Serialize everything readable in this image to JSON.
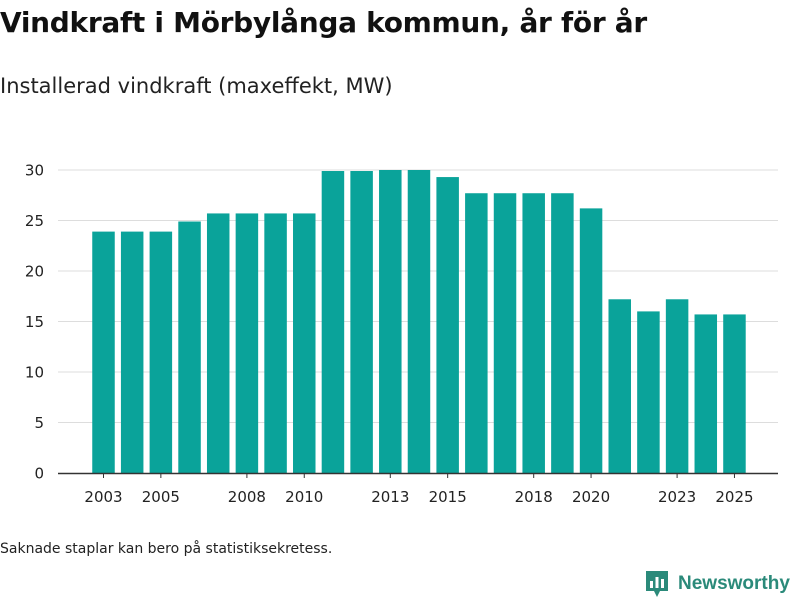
{
  "header": {
    "title": "Vindkraft i Mörbylånga kommun, år för år",
    "subtitle": "Installerad vindkraft (maxeffekt, MW)"
  },
  "footnote": "Saknade staplar kan bero på statistiksekretess.",
  "brand": {
    "name": "Newsworthy",
    "color": "#2b8a7a",
    "icon": "newsworthy-logo-icon"
  },
  "colors": {
    "bar": "#0aa39a",
    "grid": "#dddddd",
    "axis": "#333333"
  },
  "chart_data": {
    "type": "bar",
    "title": "Vindkraft i Mörbylånga kommun, år för år",
    "subtitle": "Installerad vindkraft (maxeffekt, MW)",
    "xlabel": "",
    "ylabel": "Installerad vindkraft (maxeffekt, MW)",
    "categories": [
      "2003",
      "2004",
      "2005",
      "2006",
      "2007",
      "2008",
      "2009",
      "2010",
      "2011",
      "2012",
      "2013",
      "2014",
      "2015",
      "2016",
      "2017",
      "2018",
      "2019",
      "2020",
      "2021",
      "2022",
      "2023",
      "2024",
      "2025"
    ],
    "values": [
      23.9,
      23.9,
      23.9,
      24.9,
      25.7,
      25.7,
      25.7,
      25.7,
      29.9,
      29.9,
      30.0,
      30.0,
      29.3,
      27.7,
      27.7,
      27.7,
      27.7,
      26.2,
      17.2,
      16.0,
      17.2,
      15.7,
      15.7
    ],
    "x_tick_labels": [
      "2003",
      "2005",
      "2008",
      "2010",
      "2013",
      "2015",
      "2018",
      "2020",
      "2023",
      "2025"
    ],
    "y_ticks": [
      0,
      5,
      10,
      15,
      20,
      25,
      30
    ],
    "ylim": [
      0,
      32
    ],
    "grid": true,
    "legend": "none"
  }
}
